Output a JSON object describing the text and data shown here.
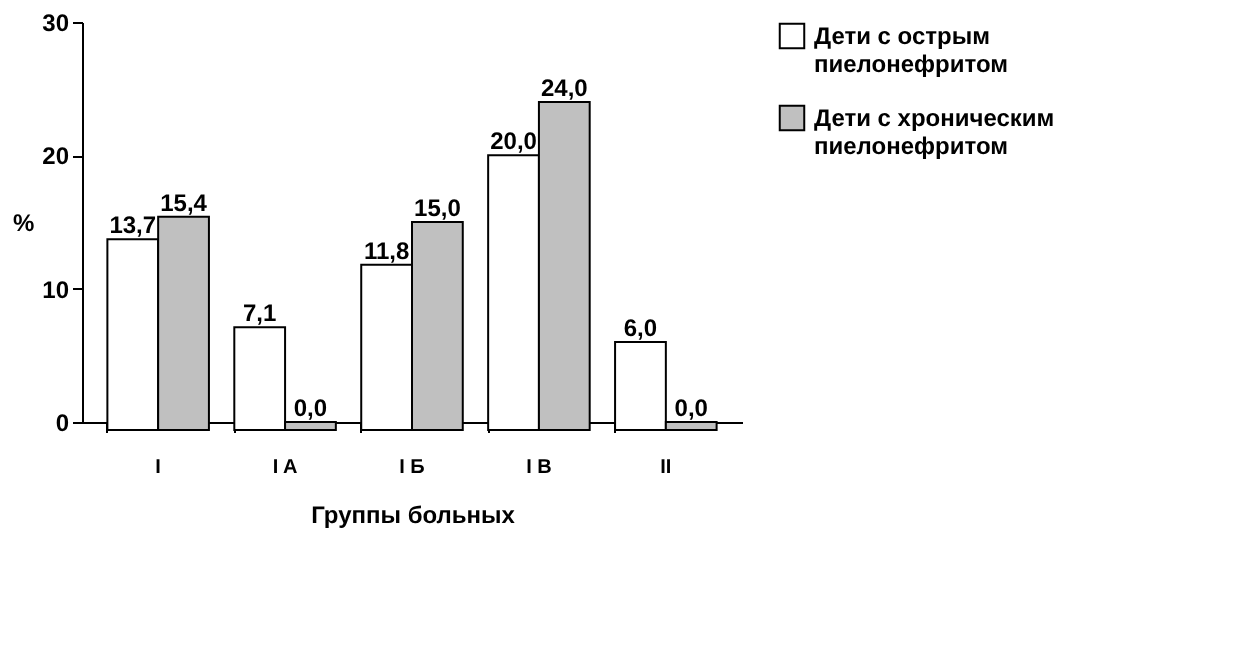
{
  "chart_data": {
    "type": "bar",
    "xlabel": "Группы больных",
    "ylabel": "%",
    "categories": [
      "I",
      "I A",
      "I Б",
      "I В",
      "II"
    ],
    "series": [
      {
        "name": "Дети с острым пиелонефритом",
        "color": "#ffffff",
        "values": [
          13.7,
          7.1,
          11.8,
          20.0,
          6.0
        ],
        "value_labels": [
          "13,7",
          "7,1",
          "11,8",
          "20,0",
          "6,0"
        ]
      },
      {
        "name": "Дети с хроническим пиелонефритом",
        "color": "#c0c0c0",
        "values": [
          15.4,
          0.0,
          15.0,
          24.0,
          0.0
        ],
        "value_labels": [
          "15,4",
          "0,0",
          "15,0",
          "24,0",
          "0,0"
        ]
      }
    ],
    "ylim": [
      0,
      30
    ],
    "yticks": [
      0,
      10,
      20,
      30
    ],
    "grid": false,
    "legend": "right"
  }
}
